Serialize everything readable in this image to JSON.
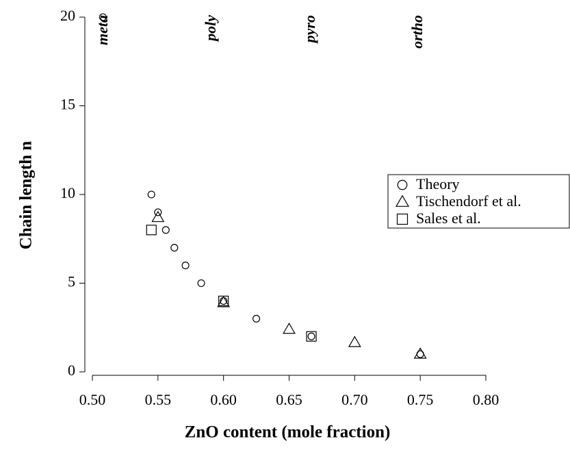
{
  "chart_data": {
    "type": "scatter",
    "xlabel": "ZnO content (mole fraction)",
    "ylabel": "Chain length n",
    "annotations": [
      "meta",
      "poly",
      "pyro",
      "ortho"
    ],
    "xlim": [
      0.5,
      0.8
    ],
    "xticks": [
      {
        "value": 0.5,
        "label": "0.50"
      },
      {
        "value": 0.55,
        "label": "0.55"
      },
      {
        "value": 0.6,
        "label": "0.60"
      },
      {
        "value": 0.65,
        "label": "0.65"
      },
      {
        "value": 0.7,
        "label": "0.70"
      },
      {
        "value": 0.75,
        "label": "0.75"
      },
      {
        "value": 0.8,
        "label": "0.80"
      }
    ],
    "ylim": [
      0,
      20
    ],
    "yticks": [
      0,
      5,
      10,
      15,
      20
    ],
    "series": [
      {
        "name": "Theory",
        "marker": "circle",
        "color": "#000000",
        "x": [
          0.508,
          0.545,
          0.55,
          0.556,
          0.5625,
          0.571,
          0.583,
          0.6,
          0.625,
          0.667,
          0.75
        ],
        "values": [
          20,
          10,
          9,
          8,
          7,
          6,
          5,
          4,
          3,
          2,
          1
        ]
      },
      {
        "name": "Tischendorf et al.",
        "marker": "triangle",
        "color": "#000000",
        "x": [
          0.55,
          0.6,
          0.65,
          0.7,
          0.75
        ],
        "values": [
          8.7,
          3.9,
          2.4,
          1.65,
          1.0
        ]
      },
      {
        "name": "Sales et al.",
        "marker": "square",
        "color": "#000000",
        "x": [
          0.545,
          0.6,
          0.667
        ],
        "values": [
          8,
          4,
          2
        ]
      }
    ]
  }
}
